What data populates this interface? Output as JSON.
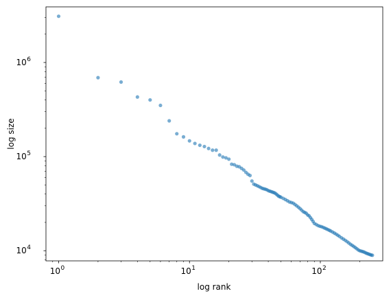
{
  "chart_data": {
    "type": "scatter",
    "title": "",
    "xlabel": "log rank",
    "ylabel": "log size",
    "xscale": "log",
    "yscale": "log",
    "xlim": [
      0.8,
      300
    ],
    "ylim": [
      7800,
      3900000
    ],
    "grid": false,
    "marker_color": "#1f77b4",
    "marker_alpha": 0.6,
    "x_ticks": [
      {
        "value": 1,
        "base": "10",
        "exp": "0"
      },
      {
        "value": 10,
        "base": "10",
        "exp": "1"
      },
      {
        "value": 100,
        "base": "10",
        "exp": "2"
      }
    ],
    "y_ticks": [
      {
        "value": 10000,
        "base": "10",
        "exp": "4"
      },
      {
        "value": 100000,
        "base": "10",
        "exp": "5"
      },
      {
        "value": 1000000,
        "base": "10",
        "exp": "6"
      }
    ],
    "x": [
      1,
      2,
      3,
      4,
      5,
      6,
      7,
      8,
      9,
      10,
      11,
      12,
      13,
      14,
      15,
      16,
      17,
      18,
      19,
      20,
      21,
      22,
      23,
      24,
      25,
      26,
      27,
      28,
      29,
      30,
      31,
      32,
      33,
      34,
      35,
      36,
      37,
      38,
      39,
      40,
      41,
      42,
      43,
      44,
      45,
      46,
      47,
      48,
      49,
      50,
      52,
      54,
      56,
      58,
      60,
      62,
      64,
      66,
      68,
      70,
      72,
      74,
      76,
      78,
      80,
      82,
      84,
      86,
      88,
      90,
      93,
      96,
      99,
      102,
      105,
      108,
      111,
      114,
      117,
      120,
      124,
      128,
      132,
      136,
      140,
      145,
      150,
      155,
      160,
      165,
      170,
      175,
      180,
      185,
      190,
      195,
      200,
      205,
      210,
      215,
      220,
      225,
      230,
      235,
      240,
      245,
      250
    ],
    "y": [
      3100000,
      690000,
      620000,
      430000,
      400000,
      350000,
      240000,
      175000,
      162000,
      147000,
      138000,
      132000,
      128000,
      122000,
      117000,
      117000,
      104000,
      99000,
      97000,
      94000,
      83000,
      82000,
      79000,
      78000,
      75000,
      72000,
      68000,
      65000,
      63000,
      55000,
      51000,
      50000,
      49000,
      48000,
      47000,
      46000,
      45500,
      45000,
      44500,
      43500,
      43000,
      42500,
      42000,
      41500,
      41000,
      40000,
      39000,
      38000,
      37500,
      37000,
      36000,
      35000,
      34000,
      33000,
      32500,
      32000,
      31000,
      30000,
      29000,
      28000,
      27000,
      26000,
      25500,
      25000,
      24000,
      23500,
      22500,
      21500,
      20500,
      19500,
      19000,
      18500,
      18200,
      18000,
      17700,
      17400,
      17100,
      16800,
      16500,
      16200,
      15800,
      15400,
      15000,
      14600,
      14200,
      13700,
      13300,
      12900,
      12500,
      12100,
      11700,
      11400,
      11100,
      10800,
      10500,
      10200,
      10000,
      9900,
      9800,
      9700,
      9550,
      9400,
      9300,
      9200,
      9100,
      9000,
      8950
    ]
  }
}
